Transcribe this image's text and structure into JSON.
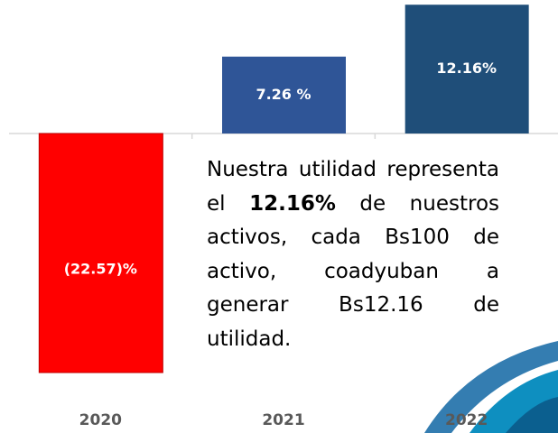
{
  "chart_data": {
    "type": "bar",
    "categories": [
      "2020",
      "2021",
      "2022"
    ],
    "values": [
      -22.57,
      7.26,
      12.16
    ],
    "value_labels": [
      "(22.57)%",
      "7.26 %",
      "12.16%"
    ],
    "colors": [
      "#ff0000",
      "#2f5597",
      "#1f4e79"
    ],
    "annotation": {
      "before": "Nuestra utilidad representa el",
      "bold": "12.16%",
      "after": "de nuestros activos, cada Bs100 de activo, coadyuban a generar Bs12.16 de utilidad."
    }
  }
}
